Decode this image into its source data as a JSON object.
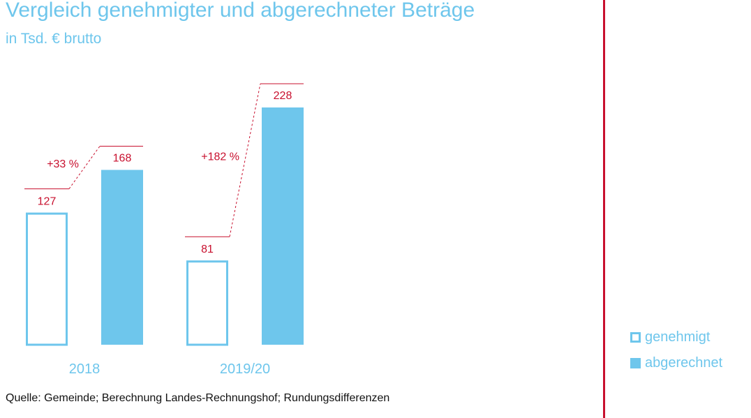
{
  "title": "Vergleich genehmigter und abgerechneter Beträge",
  "subtitle": "in Tsd. € brutto",
  "source": "Quelle: Gemeinde; Berechnung Landes-Rechnungshof; Rundungsdifferenzen",
  "legend": {
    "approved": "genehmigt",
    "settled": "abgerechnet"
  },
  "colors": {
    "bar": "#6ec6ec",
    "accent": "#c8102e",
    "text": "#111111"
  },
  "chart_data": {
    "type": "bar",
    "title": "Vergleich genehmigter und abgerechneter Beträge",
    "subtitle": "in Tsd. € brutto",
    "categories": [
      "2018",
      "2019/20"
    ],
    "series": [
      {
        "name": "genehmigt",
        "values": [
          127,
          81
        ],
        "style": "outline"
      },
      {
        "name": "abgerechnet",
        "values": [
          168,
          228
        ],
        "style": "filled"
      }
    ],
    "annotations": [
      "+33 %",
      "+182 %"
    ],
    "ylim": [
      0,
      228
    ],
    "grid": false,
    "legend_position": "bottom-right"
  }
}
